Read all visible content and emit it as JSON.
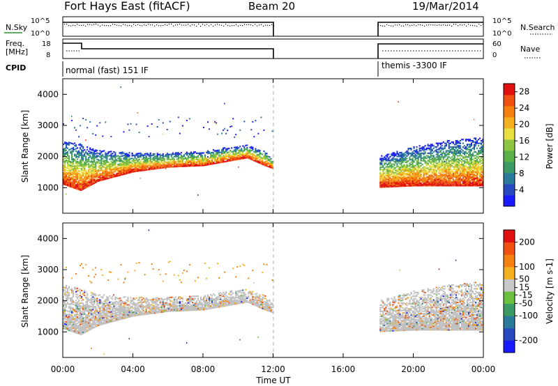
{
  "header": {
    "station": "Fort Hays East (fitACF)",
    "beam": "Beam 20",
    "date": "19/Mar/2014"
  },
  "colors": {
    "power_scale": [
      "#1a1aff",
      "#2848c0",
      "#2a7a9c",
      "#3c9a64",
      "#5bb04a",
      "#8cc640",
      "#e8e040",
      "#f5b020",
      "#f58010",
      "#f05010",
      "#e01010"
    ],
    "velocity_scale": [
      "#1a1aff",
      "#2848c0",
      "#2a7a9c",
      "#3c9a64",
      "#6cc040",
      "#c8c8c8",
      "#f5b020",
      "#f58010",
      "#f05010",
      "#e01010"
    ],
    "ground_scatter": "#c0c0c0"
  },
  "panels": {
    "nsky": {
      "label": "N.Sky",
      "left_ticks": [
        "10^5",
        "10^0"
      ],
      "right_ticks": [
        "10^5",
        "10^0"
      ],
      "right_label": "N.Search"
    },
    "freq": {
      "label_line1": "Freq.",
      "label_line2": "[MHz]",
      "left_ticks": [
        "18",
        "8"
      ],
      "right_ticks": [
        "60",
        "0"
      ],
      "right_label": "Nave"
    },
    "cpid": {
      "label": "CPID",
      "segments": [
        "normal (fast) 151 IF",
        "themis -3300 IF"
      ]
    }
  },
  "chart_data": [
    {
      "type": "heatmap",
      "name_key": "power",
      "ylabel": "Slant Range [km]",
      "xlabel": "Time UT",
      "x_ticks": [
        "00:00",
        "04:00",
        "08:00",
        "12:00",
        "16:00",
        "20:00",
        "00:00"
      ],
      "x_range_hours": [
        0,
        24
      ],
      "y_ticks": [
        1000,
        2000,
        3000,
        4000
      ],
      "ylim": [
        180,
        4500
      ],
      "colorbar": {
        "label": "Power [dB]",
        "ticks": [
          4,
          8,
          12,
          16,
          20,
          24,
          28
        ],
        "range": [
          0,
          30
        ]
      },
      "data_gaps_hours": [
        [
          12,
          18
        ]
      ],
      "ionospheric_band": [
        {
          "t": 0.0,
          "lo": 1100,
          "hi": 2500
        },
        {
          "t": 1.0,
          "lo": 900,
          "hi": 2400
        },
        {
          "t": 2.0,
          "lo": 1200,
          "hi": 2200
        },
        {
          "t": 4.0,
          "lo": 1500,
          "hi": 2100
        },
        {
          "t": 6.0,
          "lo": 1650,
          "hi": 2100
        },
        {
          "t": 8.0,
          "lo": 1700,
          "hi": 2150
        },
        {
          "t": 9.5,
          "lo": 1850,
          "hi": 2300
        },
        {
          "t": 10.5,
          "lo": 1950,
          "hi": 2350
        },
        {
          "t": 11.5,
          "lo": 1700,
          "hi": 2150
        },
        {
          "t": 12.0,
          "lo": 1600,
          "hi": 1900
        },
        {
          "t": 18.0,
          "lo": 1000,
          "hi": 2000
        },
        {
          "t": 20.0,
          "lo": 1050,
          "hi": 2300
        },
        {
          "t": 22.0,
          "lo": 1050,
          "hi": 2500
        },
        {
          "t": 24.0,
          "lo": 1050,
          "hi": 2600
        }
      ]
    },
    {
      "type": "heatmap",
      "name_key": "velocity",
      "ylabel": "Slant Range [km]",
      "xlabel": "Time UT",
      "x_ticks": [
        "00:00",
        "04:00",
        "08:00",
        "12:00",
        "16:00",
        "20:00",
        "00:00"
      ],
      "x_range_hours": [
        0,
        24
      ],
      "y_ticks": [
        1000,
        2000,
        3000,
        4000
      ],
      "ylim": [
        180,
        4500
      ],
      "colorbar": {
        "label": "Velocity [m s-1]",
        "ticks": [
          200,
          100,
          50,
          15,
          -15,
          -50,
          -100,
          -200
        ],
        "range": [
          -250,
          250
        ]
      },
      "data_gaps_hours": [
        [
          12,
          18
        ]
      ]
    }
  ]
}
